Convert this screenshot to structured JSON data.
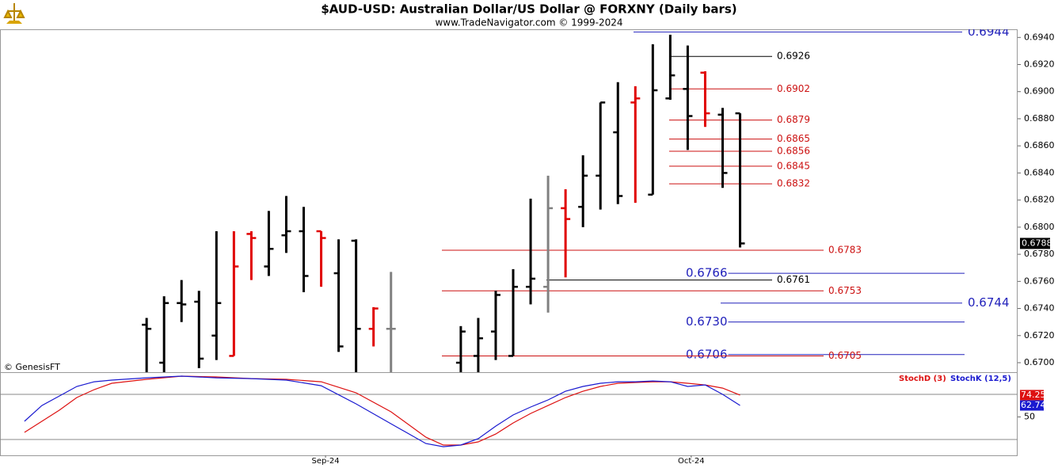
{
  "header": {
    "title": "$AUD-USD:  Australian Dollar/US Dollar @ FORXNY  (Daily bars)",
    "subtitle": "www.TradeNavigator.com © 1999-2024",
    "watermark": "© GenesisFT"
  },
  "chart_data": [
    {
      "type": "ohlc",
      "x": [
        0,
        1,
        2,
        3,
        4,
        5,
        6,
        7,
        8,
        9,
        10,
        11,
        12,
        13,
        14,
        18,
        19,
        20,
        21,
        22,
        23,
        24,
        25,
        26,
        27,
        28,
        29,
        30,
        31,
        32,
        33,
        34
      ],
      "open": [
        0.6728,
        0.67,
        0.6744,
        0.6745,
        0.672,
        0.6705,
        0.6795,
        0.6771,
        0.6794,
        0.6797,
        0.6797,
        0.6766,
        0.679,
        0.6725,
        0.6725,
        0.67,
        0.6705,
        0.6723,
        0.6705,
        0.6756,
        0.6756,
        0.6814,
        0.6815,
        0.6838,
        0.687,
        0.6892,
        0.6824,
        0.6895,
        0.6902,
        0.6914,
        0.6883,
        0.6884
      ],
      "high": [
        0.6733,
        0.6749,
        0.6761,
        0.6753,
        0.6797,
        0.6797,
        0.6797,
        0.6812,
        0.6823,
        0.6815,
        0.6797,
        0.6791,
        0.6791,
        0.6741,
        0.6767,
        0.6727,
        0.6733,
        0.6753,
        0.6769,
        0.6821,
        0.6838,
        0.6828,
        0.6853,
        0.6892,
        0.6907,
        0.6904,
        0.6935,
        0.6942,
        0.6934,
        0.6915,
        0.6888,
        0.6884
      ],
      "low": [
        0.669,
        0.669,
        0.673,
        0.6696,
        0.6702,
        0.6705,
        0.6761,
        0.6764,
        0.6781,
        0.6752,
        0.6756,
        0.6708,
        0.669,
        0.6712,
        0.669,
        0.669,
        0.669,
        0.6702,
        0.6705,
        0.6743,
        0.6737,
        0.6763,
        0.68,
        0.6813,
        0.6817,
        0.6818,
        0.6824,
        0.6894,
        0.6857,
        0.6874,
        0.6829,
        0.6785
      ],
      "close": [
        0.6725,
        0.6744,
        0.6743,
        0.6703,
        0.6744,
        0.6771,
        0.6792,
        0.6784,
        0.6797,
        0.6764,
        0.6792,
        0.6712,
        0.6725,
        0.674,
        0.6725,
        0.6723,
        0.6718,
        0.675,
        0.6756,
        0.6762,
        0.6814,
        0.6806,
        0.6838,
        0.6892,
        0.6823,
        0.6895,
        0.6901,
        0.6912,
        0.6882,
        0.6884,
        0.684,
        0.6788
      ],
      "colors": [
        "#000000",
        "#000000",
        "#000000",
        "#000000",
        "#000000",
        "#e00000",
        "#e00000",
        "#000000",
        "#000000",
        "#000000",
        "#e00000",
        "#000000",
        "#000000",
        "#e00000",
        "#808080",
        "#000000",
        "#000000",
        "#000000",
        "#000000",
        "#000000",
        "#808080",
        "#e00000",
        "#000000",
        "#000000",
        "#000000",
        "#e00000",
        "#000000",
        "#000000",
        "#000000",
        "#e00000",
        "#000000",
        "#000000"
      ],
      "xlim": [
        -8.4,
        49.9
      ],
      "ylim": [
        0.6693,
        0.6946
      ],
      "yticks": [
        {
          "value": 0.694,
          "label": "0.6940"
        },
        {
          "value": 0.692,
          "label": "0.6920"
        },
        {
          "value": 0.69,
          "label": "0.6900"
        },
        {
          "value": 0.688,
          "label": "0.6880"
        },
        {
          "value": 0.686,
          "label": "0.6860"
        },
        {
          "value": 0.684,
          "label": "0.6840"
        },
        {
          "value": 0.682,
          "label": "0.6820"
        },
        {
          "value": 0.68,
          "label": "0.6800"
        },
        {
          "value": 0.678,
          "label": "0.6780"
        },
        {
          "value": 0.676,
          "label": "0.6760"
        },
        {
          "value": 0.674,
          "label": "0.6740"
        },
        {
          "value": 0.672,
          "label": "0.6720"
        },
        {
          "value": 0.67,
          "label": "0.6700"
        }
      ],
      "last_price": 0.6788,
      "levels": [
        {
          "value": 0.6944,
          "color": "#2222bb"
        },
        {
          "value": 0.6926,
          "color": "#000000"
        },
        {
          "value": 0.6902,
          "color": "#cc1111"
        },
        {
          "value": 0.6879,
          "color": "#cc1111"
        },
        {
          "value": 0.6865,
          "color": "#cc1111"
        },
        {
          "value": 0.6856,
          "color": "#cc1111"
        },
        {
          "value": 0.6845,
          "color": "#cc1111"
        },
        {
          "value": 0.6832,
          "color": "#cc1111"
        },
        {
          "value": 0.6783,
          "color": "#cc1111"
        },
        {
          "value": 0.6766,
          "color": "#2222bb"
        },
        {
          "value": 0.6761,
          "color": "#000000"
        },
        {
          "value": 0.6753,
          "color": "#cc1111"
        },
        {
          "value": 0.6744,
          "color": "#2222bb"
        },
        {
          "value": {
            "value": 0.673,
            "label": "0.6730"
          },
          "color": "#2222bb"
        },
        {
          "value": 0.6706,
          "color": "#2222bb"
        },
        {
          "value": 0.6705,
          "color": "#cc1111"
        }
      ]
    },
    {
      "type": "line",
      "x": [
        -7,
        -6,
        -5,
        -4,
        -3,
        -2,
        0,
        2,
        4,
        6,
        8,
        10,
        12,
        14,
        16,
        17,
        18,
        19,
        20,
        21,
        22,
        23,
        24,
        25,
        26,
        27,
        28,
        29,
        30,
        31,
        32,
        33,
        34
      ],
      "series": [
        {
          "name": "StochD (3)",
          "color": "#dd1111",
          "last": 74.25,
          "values": [
            32.9,
            45.2,
            57.5,
            71.5,
            80.3,
            87.3,
            91.7,
            95.2,
            94.3,
            92.5,
            91.7,
            89.0,
            76.8,
            55.7,
            27.6,
            18.9,
            18.9,
            22.4,
            31.1,
            43.4,
            53.9,
            62.7,
            71.5,
            78.5,
            83.8,
            87.3,
            88.2,
            89.0,
            89.0,
            87.3,
            85.5,
            82.0,
            74.25
          ]
        },
        {
          "name": "StochK (12,5)",
          "color": "#1a1ad0",
          "last": 62.74,
          "values": [
            45.2,
            62.7,
            73.2,
            83.8,
            89.0,
            90.8,
            93.4,
            95.2,
            93.4,
            92.5,
            90.8,
            84.6,
            64.5,
            42.5,
            20.6,
            17.1,
            18.9,
            25.9,
            39.9,
            52.2,
            61.0,
            68.9,
            78.5,
            83.8,
            87.3,
            89.0,
            89.0,
            89.9,
            89.0,
            83.8,
            85.5,
            75.0,
            62.74
          ]
        }
      ],
      "xlim": [
        -8.4,
        49.9
      ],
      "ylim": [
        7.5,
        99.6
      ],
      "yticks": [
        50
      ],
      "grid_lines": [
        25,
        75
      ],
      "xticks": [
        {
          "value": 10.25,
          "label": "Sep-24"
        },
        {
          "value": 31.2,
          "label": "Oct-24"
        }
      ]
    }
  ]
}
